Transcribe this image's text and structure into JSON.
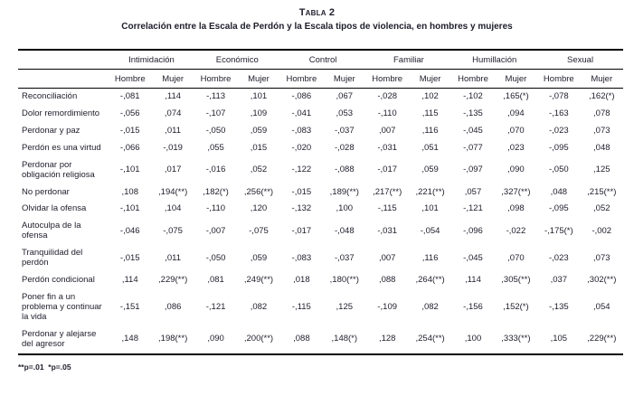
{
  "title": "Tabla 2",
  "subtitle": "Correlación entre la Escala de Perdón y la Escala tipos de violencia, en hombres y mujeres",
  "footnote": "**p=.01  *p=.05",
  "colors": {
    "text": "#1d1d2b",
    "rule": "#000000",
    "background": "#ffffff"
  },
  "table": {
    "groups": [
      "Intimidación",
      "Económico",
      "Control",
      "Familiar",
      "Humillación",
      "Sexual"
    ],
    "subheaders": [
      "Hombre",
      "Mujer"
    ],
    "rows": [
      {
        "label": "Reconciliación",
        "values": [
          "-,081",
          ",114",
          "-,113",
          ",101",
          "-,086",
          ",067",
          "-,028",
          ",102",
          "-,102",
          ",165(*)",
          "-,078",
          ",162(*)"
        ]
      },
      {
        "label": "Dolor remordimiento",
        "values": [
          "-,056",
          ",074",
          "-,107",
          ",109",
          "-,041",
          ",053",
          "-,110",
          ",115",
          "-,135",
          ",094",
          "-,163",
          ",078"
        ]
      },
      {
        "label": "Perdonar y paz",
        "values": [
          "-,015",
          ",011",
          "-,050",
          ",059",
          "-,083",
          "-,037",
          ",007",
          ",116",
          "-,045",
          ",070",
          "-,023",
          ",073"
        ]
      },
      {
        "label": "Perdón es una virtud",
        "values": [
          "-,066",
          "-,019",
          ",055",
          ",015",
          "-,020",
          "-,028",
          "-,031",
          ",051",
          "-,077",
          ",023",
          "-,095",
          ",048"
        ]
      },
      {
        "label": "Perdonar por obligación religiosa",
        "values": [
          "-,101",
          ",017",
          "-,016",
          ",052",
          "-,122",
          "-,088",
          "-,017",
          ",059",
          "-,097",
          ",090",
          "-,050",
          ",125"
        ]
      },
      {
        "label": "No perdonar",
        "values": [
          ",108",
          ",194(**)",
          ",182(*)",
          ",256(**)",
          "-,015",
          ",189(**)",
          ",217(**)",
          ",221(**)",
          ",057",
          ",327(**)",
          ",048",
          ",215(**)"
        ]
      },
      {
        "label": "Olvidar la ofensa",
        "values": [
          "-,101",
          ",104",
          "-,110",
          ",120",
          "-,132",
          ",100",
          "-,115",
          ",101",
          "-,121",
          ",098",
          "-,095",
          ",052"
        ]
      },
      {
        "label": "Autoculpa de la ofensa",
        "values": [
          "-,046",
          "-,075",
          "-,007",
          "-,075",
          "-,017",
          "-,048",
          "-,031",
          "-,054",
          "-,096",
          "-,022",
          "-,175(*)",
          "-,002"
        ]
      },
      {
        "label": "Tranquilidad del perdón",
        "values": [
          "-,015",
          ",011",
          "-,050",
          ",059",
          "-,083",
          "-,037",
          ",007",
          ",116",
          "-,045",
          ",070",
          "-,023",
          ",073"
        ]
      },
      {
        "label": "Perdón condicional",
        "values": [
          ",114",
          ",229(**)",
          ",081",
          ",249(**)",
          ",018",
          ",180(**)",
          ",088",
          ",264(**)",
          ",114",
          ",305(**)",
          ",037",
          ",302(**)"
        ]
      },
      {
        "label": "Poner fin a un problema y continuar la vida",
        "values": [
          "-,151",
          ",086",
          "-,121",
          ",082",
          "-,115",
          ",125",
          "-,109",
          ",082",
          "-,156",
          ",152(*)",
          "-,135",
          ",054"
        ]
      },
      {
        "label": "Perdonar y alejarse del agresor",
        "values": [
          ",148",
          ",198(**)",
          ",090",
          ",200(**)",
          ",088",
          ",148(*)",
          ",128",
          ",254(**)",
          ",100",
          ",333(**)",
          ",105",
          ",229(**)"
        ]
      }
    ]
  }
}
